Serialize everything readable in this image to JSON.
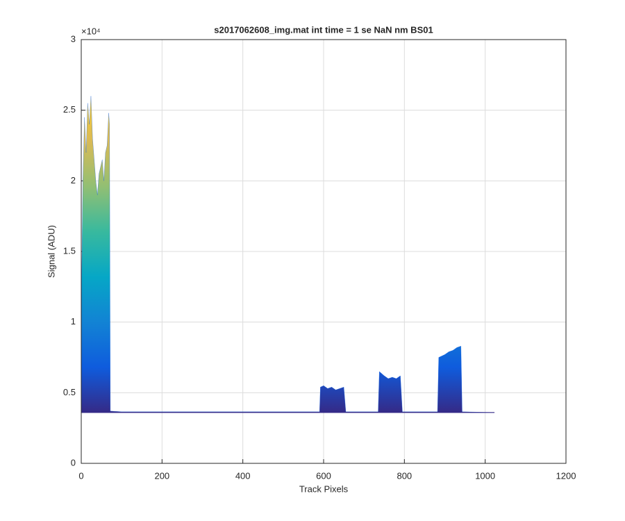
{
  "chart_data": {
    "type": "area",
    "title": "s2017062608_img.mat int time = 1 se  NaN nm BS01",
    "x_label": "Track Pixels",
    "y_label": "Signal (ADU)",
    "y_multiplier": "×10⁴",
    "x": [
      0,
      1,
      4,
      8,
      12,
      16,
      20,
      24,
      28,
      32,
      36,
      40,
      44,
      48,
      52,
      56,
      60,
      64,
      68,
      70,
      72,
      100,
      590,
      592,
      600,
      610,
      620,
      630,
      640,
      650,
      655,
      735,
      738,
      750,
      760,
      770,
      780,
      790,
      795,
      882,
      885,
      900,
      910,
      920,
      930,
      940,
      943,
      1020,
      1023
    ],
    "values": [
      3600,
      13000,
      20000,
      24500,
      22000,
      25500,
      24000,
      26000,
      23000,
      21500,
      20000,
      19000,
      20500,
      21000,
      21500,
      20000,
      22000,
      22500,
      24800,
      24000,
      3700,
      3650,
      3650,
      5400,
      5500,
      5300,
      5400,
      5200,
      5300,
      5400,
      3650,
      3650,
      6500,
      6200,
      6000,
      6100,
      6000,
      6200,
      3650,
      3650,
      7500,
      7700,
      7900,
      8000,
      8200,
      8300,
      3650,
      3600,
      3600
    ],
    "base": 3600,
    "colormap": [
      "#352a87",
      "#0f5cdd",
      "#1283d4",
      "#06a7c6",
      "#38b99e",
      "#92bf73",
      "#d9ba56",
      "#fcce2e"
    ],
    "xlim": [
      0,
      1200
    ],
    "ylim": [
      0,
      30000
    ],
    "xticks": [
      0,
      200,
      400,
      600,
      800,
      1000,
      1200
    ],
    "yticks": [
      0,
      {
        "value": 5000,
        "label": "0.5"
      },
      {
        "value": 10000,
        "label": "1"
      },
      {
        "value": 15000,
        "label": "1.5"
      },
      {
        "value": 20000,
        "label": "2"
      },
      {
        "value": 25000,
        "label": "2.5"
      },
      {
        "value": 30000,
        "label": "3"
      }
    ],
    "grid": true
  }
}
